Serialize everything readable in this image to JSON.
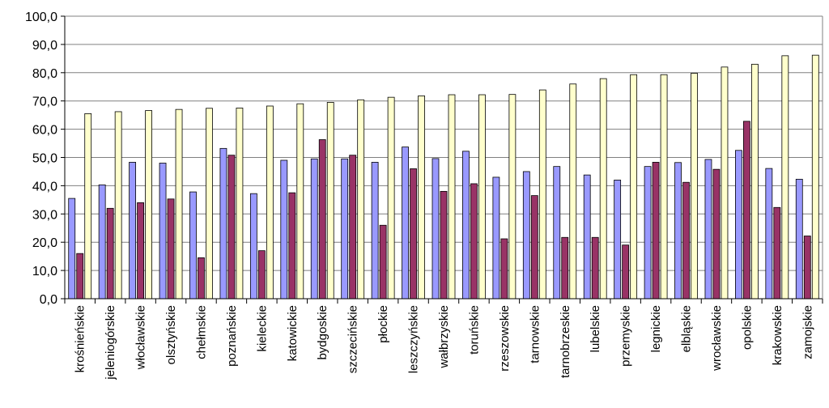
{
  "chart_data": {
    "type": "bar",
    "categories": [
      "krośnieńskie",
      "jeleniogórskie",
      "włocławskie",
      "olsztyńskie",
      "chełmskie",
      "poznańskie",
      "kieleckie",
      "katowickie",
      "bydgoskie",
      "szczecińskie",
      "płockie",
      "leszczyńskie",
      "wałbrzyskie",
      "toruńskie",
      "rzeszowskie",
      "tarnowskie",
      "tarnobrzeskie",
      "lubelskie",
      "przemyskie",
      "legnickie",
      "elbląskie",
      "wrocławskie",
      "opolskie",
      "krakowskie",
      "zamojskie"
    ],
    "series": [
      {
        "values": [
          35.5,
          40.3,
          48.3,
          48.0,
          37.8,
          53.2,
          37.2,
          49.0,
          49.5,
          49.5,
          48.3,
          53.7,
          49.6,
          52.2,
          43.0,
          45.0,
          46.8,
          43.8,
          42.0,
          46.8,
          48.2,
          49.3,
          52.5,
          46.1,
          42.3
        ],
        "color": "#9999ff"
      },
      {
        "values": [
          16.0,
          32.0,
          34.0,
          35.3,
          14.5,
          50.8,
          17.0,
          37.5,
          56.3,
          50.8,
          26.0,
          46.0,
          38.0,
          40.7,
          21.2,
          36.5,
          21.7,
          21.7,
          19.0,
          48.3,
          41.2,
          45.8,
          62.8,
          32.3,
          22.2
        ],
        "color": "#993366"
      },
      {
        "values": [
          65.5,
          66.2,
          66.6,
          67.0,
          67.4,
          67.5,
          68.2,
          69.0,
          69.5,
          70.4,
          71.3,
          71.8,
          72.2,
          72.2,
          72.3,
          73.9,
          76.0,
          77.9,
          79.3,
          79.3,
          79.8,
          82.0,
          83.0,
          86.0,
          86.2
        ],
        "color": "#ffffcc"
      }
    ],
    "ylim": [
      0,
      100
    ],
    "yticks": [
      "0,0",
      "10,0",
      "20,0",
      "30,0",
      "40,0",
      "50,0",
      "60,0",
      "70,0",
      "80,0",
      "90,0",
      "100,0"
    ],
    "grid": true,
    "legend": "none"
  }
}
